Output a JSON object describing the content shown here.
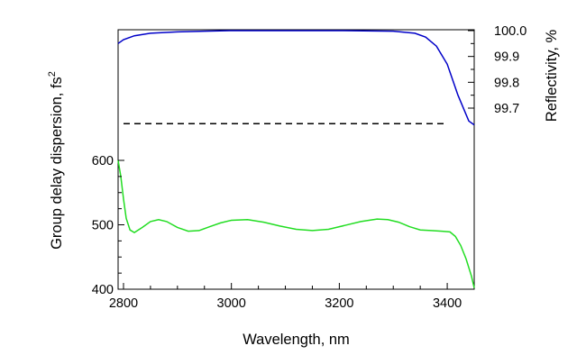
{
  "chart_data": {
    "type": "line",
    "xlabel": "Wavelength, nm",
    "ylabel_left": "Group delay dispersion, fs",
    "ylabel_left_superscript": "2",
    "ylabel_right": "Reflectivity, %",
    "xlim": [
      2790,
      3450
    ],
    "ylim_left": [
      400,
      600
    ],
    "ylim_right": [
      99.63,
      100.0
    ],
    "x_ticks": [
      2800,
      3000,
      3200,
      3400
    ],
    "x_tick_labels": [
      "2800",
      "3000",
      "3200",
      "3400"
    ],
    "y_left_ticks": [
      400,
      500,
      600
    ],
    "y_left_tick_labels": [
      "400",
      "500",
      "600"
    ],
    "y_right_ticks": [
      99.7,
      99.8,
      99.9,
      100.0
    ],
    "y_right_tick_labels": [
      "99.7",
      "99.8",
      "99.9",
      "100.0"
    ],
    "grid": false,
    "series": [
      {
        "axis": "right",
        "color": "#0000c8",
        "style": "solid",
        "x": [
          2790,
          2800,
          2820,
          2850,
          2900,
          2950,
          3000,
          3100,
          3200,
          3300,
          3340,
          3360,
          3380,
          3400,
          3420,
          3440,
          3450
        ],
        "y": [
          99.95,
          99.965,
          99.98,
          99.99,
          99.995,
          99.998,
          100.0,
          100.0,
          100.0,
          99.998,
          99.99,
          99.975,
          99.94,
          99.87,
          99.75,
          99.65,
          99.635
        ]
      },
      {
        "axis": "left",
        "color": "#22dd22",
        "style": "solid",
        "x": [
          2790,
          2795,
          2800,
          2805,
          2812,
          2820,
          2835,
          2850,
          2865,
          2880,
          2900,
          2920,
          2940,
          2960,
          2980,
          3000,
          3030,
          3060,
          3090,
          3120,
          3150,
          3180,
          3210,
          3240,
          3270,
          3290,
          3310,
          3330,
          3350,
          3370,
          3390,
          3405,
          3415,
          3425,
          3435,
          3445,
          3450
        ],
        "y": [
          600,
          575,
          540,
          510,
          492,
          488,
          496,
          505,
          508,
          505,
          496,
          490,
          491,
          497,
          503,
          507,
          508,
          504,
          498,
          493,
          491,
          493,
          499,
          505,
          509,
          508,
          504,
          497,
          492,
          491,
          490,
          489,
          482,
          468,
          447,
          420,
          402
        ]
      },
      {
        "axis": "right",
        "color": "#000000",
        "style": "dashed",
        "x": [
          2800,
          3400
        ],
        "y": [
          99.64,
          99.64
        ]
      }
    ]
  }
}
